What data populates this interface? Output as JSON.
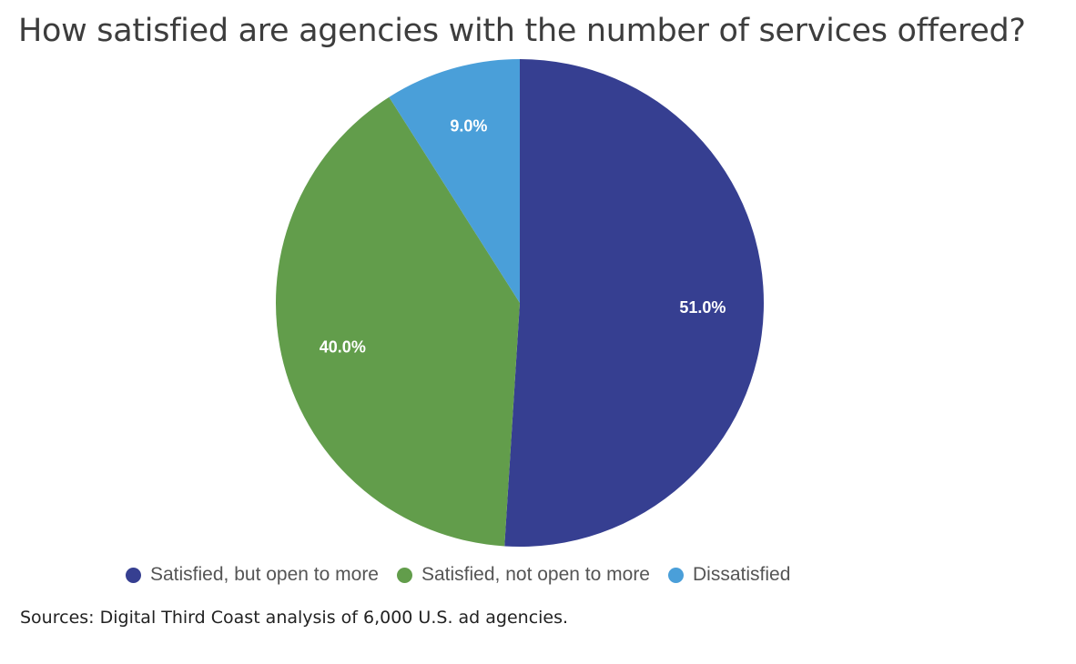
{
  "chart_data": {
    "type": "pie",
    "title": "How satisfied are agencies with the number of services offered?",
    "categories": [
      "Satisfied, but open to more",
      "Satisfied, not open to more",
      "Dissatisfied"
    ],
    "values": [
      51.0,
      40.0,
      9.0
    ],
    "data_labels": [
      "51.0%",
      "40.0%",
      "9.0%"
    ],
    "colors": [
      "#363f91",
      "#629d4b",
      "#4a9fd9"
    ],
    "legend_position": "bottom",
    "start_angle": "top, clockwise"
  },
  "source": "Sources: Digital Third Coast analysis of 6,000 U.S. ad agencies."
}
